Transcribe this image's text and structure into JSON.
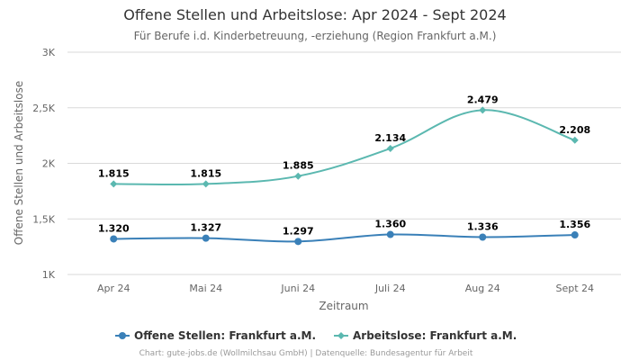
{
  "chart_data": {
    "type": "line",
    "title": "Offene Stellen und Arbeitslose: Apr 2024 - Sept 2024",
    "subtitle": "Für Berufe i.d. Kinderbetreuung, -erziehung (Region Frankfurt a.M.)",
    "xlabel": "Zeitraum",
    "ylabel": "Offene Stellen und Arbeitslose",
    "categories": [
      "Apr 24",
      "Mai 24",
      "Juni 24",
      "Juli 24",
      "Aug 24",
      "Sept 24"
    ],
    "ylim": [
      1000,
      3000
    ],
    "yticks": [
      {
        "value": 1000,
        "label": "1K"
      },
      {
        "value": 1500,
        "label": "1,5K"
      },
      {
        "value": 2000,
        "label": "2K"
      },
      {
        "value": 2500,
        "label": "2,5K"
      },
      {
        "value": 3000,
        "label": "3K"
      }
    ],
    "grid": true,
    "legend_position": "bottom",
    "series": [
      {
        "name": "Offene Stellen: Frankfurt a.M.",
        "color": "#3a80b8",
        "marker": "circle",
        "values": [
          1320,
          1327,
          1297,
          1360,
          1336,
          1356
        ],
        "labels": [
          "1.320",
          "1.327",
          "1.297",
          "1.360",
          "1.336",
          "1.356"
        ]
      },
      {
        "name": "Arbeitslose: Frankfurt a.M.",
        "color": "#5bb8b0",
        "marker": "diamond",
        "values": [
          1815,
          1815,
          1885,
          2134,
          2479,
          2208
        ],
        "labels": [
          "1.815",
          "1.815",
          "1.885",
          "2.134",
          "2.479",
          "2.208"
        ]
      }
    ],
    "credits": "Chart: gute-jobs.de (Wollmilchsau GmbH) | Datenquelle: Bundesagentur für Arbeit"
  }
}
